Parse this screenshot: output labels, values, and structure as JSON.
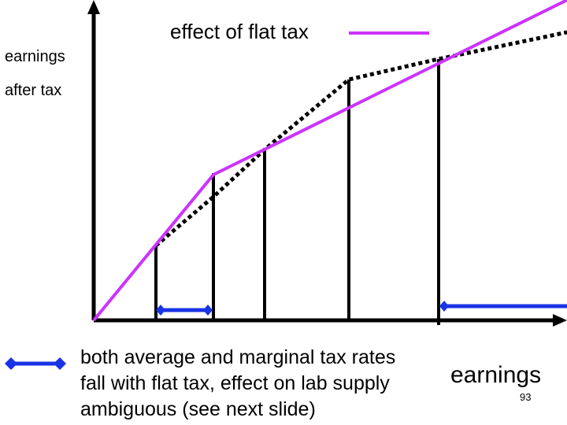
{
  "texts": {
    "y_axis_label_line1": "earnings",
    "y_axis_label_line2": "after tax",
    "legend_label": "effect of flat tax",
    "note_line1": "both average and marginal tax rates",
    "note_line2": "fall with flat tax, effect on lab supply",
    "note_line3": "ambiguous (see next slide)",
    "x_axis_label": "earnings",
    "page_number": "93"
  },
  "colors": {
    "flat_tax_line": "#cc33ff",
    "original_schedule": "#000000",
    "range_markers": "#1a33e6",
    "axes": "#000000"
  }
}
